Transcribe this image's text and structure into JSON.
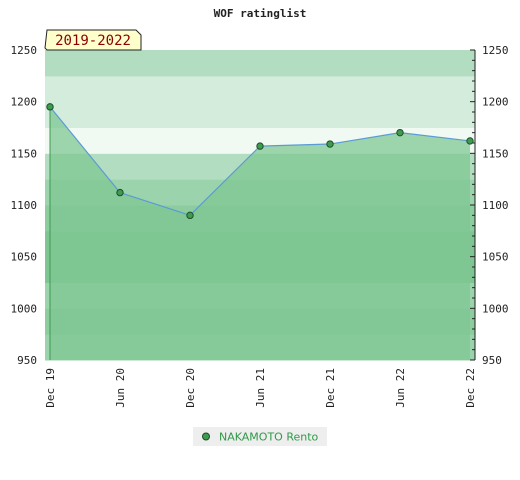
{
  "chart_data": {
    "type": "area",
    "title": "WOF ratinglist",
    "period_label": "2019-2022",
    "xlabel": "",
    "ylabel": "",
    "x": [
      "Dec 19",
      "Jun 20",
      "Dec 20",
      "Jun 21",
      "Dec 21",
      "Jun 22",
      "Dec 22"
    ],
    "ylim": [
      950,
      1250
    ],
    "yticks": [
      950,
      1000,
      1050,
      1100,
      1150,
      1200,
      1250
    ],
    "grid": false,
    "legend_position": "bottom-center",
    "series": [
      {
        "name": "NAKAMOTO Rento",
        "values": [
          1195,
          1112,
          1090,
          1157,
          1159,
          1170,
          1162
        ],
        "line_color": "#5b9bd5",
        "marker_color": "#3e9b50",
        "fill_color": "#7fc793"
      }
    ],
    "background_band_colors": [
      "#9ad3ac",
      "#8ccc9e",
      "#7ec593",
      "#b2ddc0",
      "#d3ecdb",
      "#f1f9f3"
    ]
  }
}
